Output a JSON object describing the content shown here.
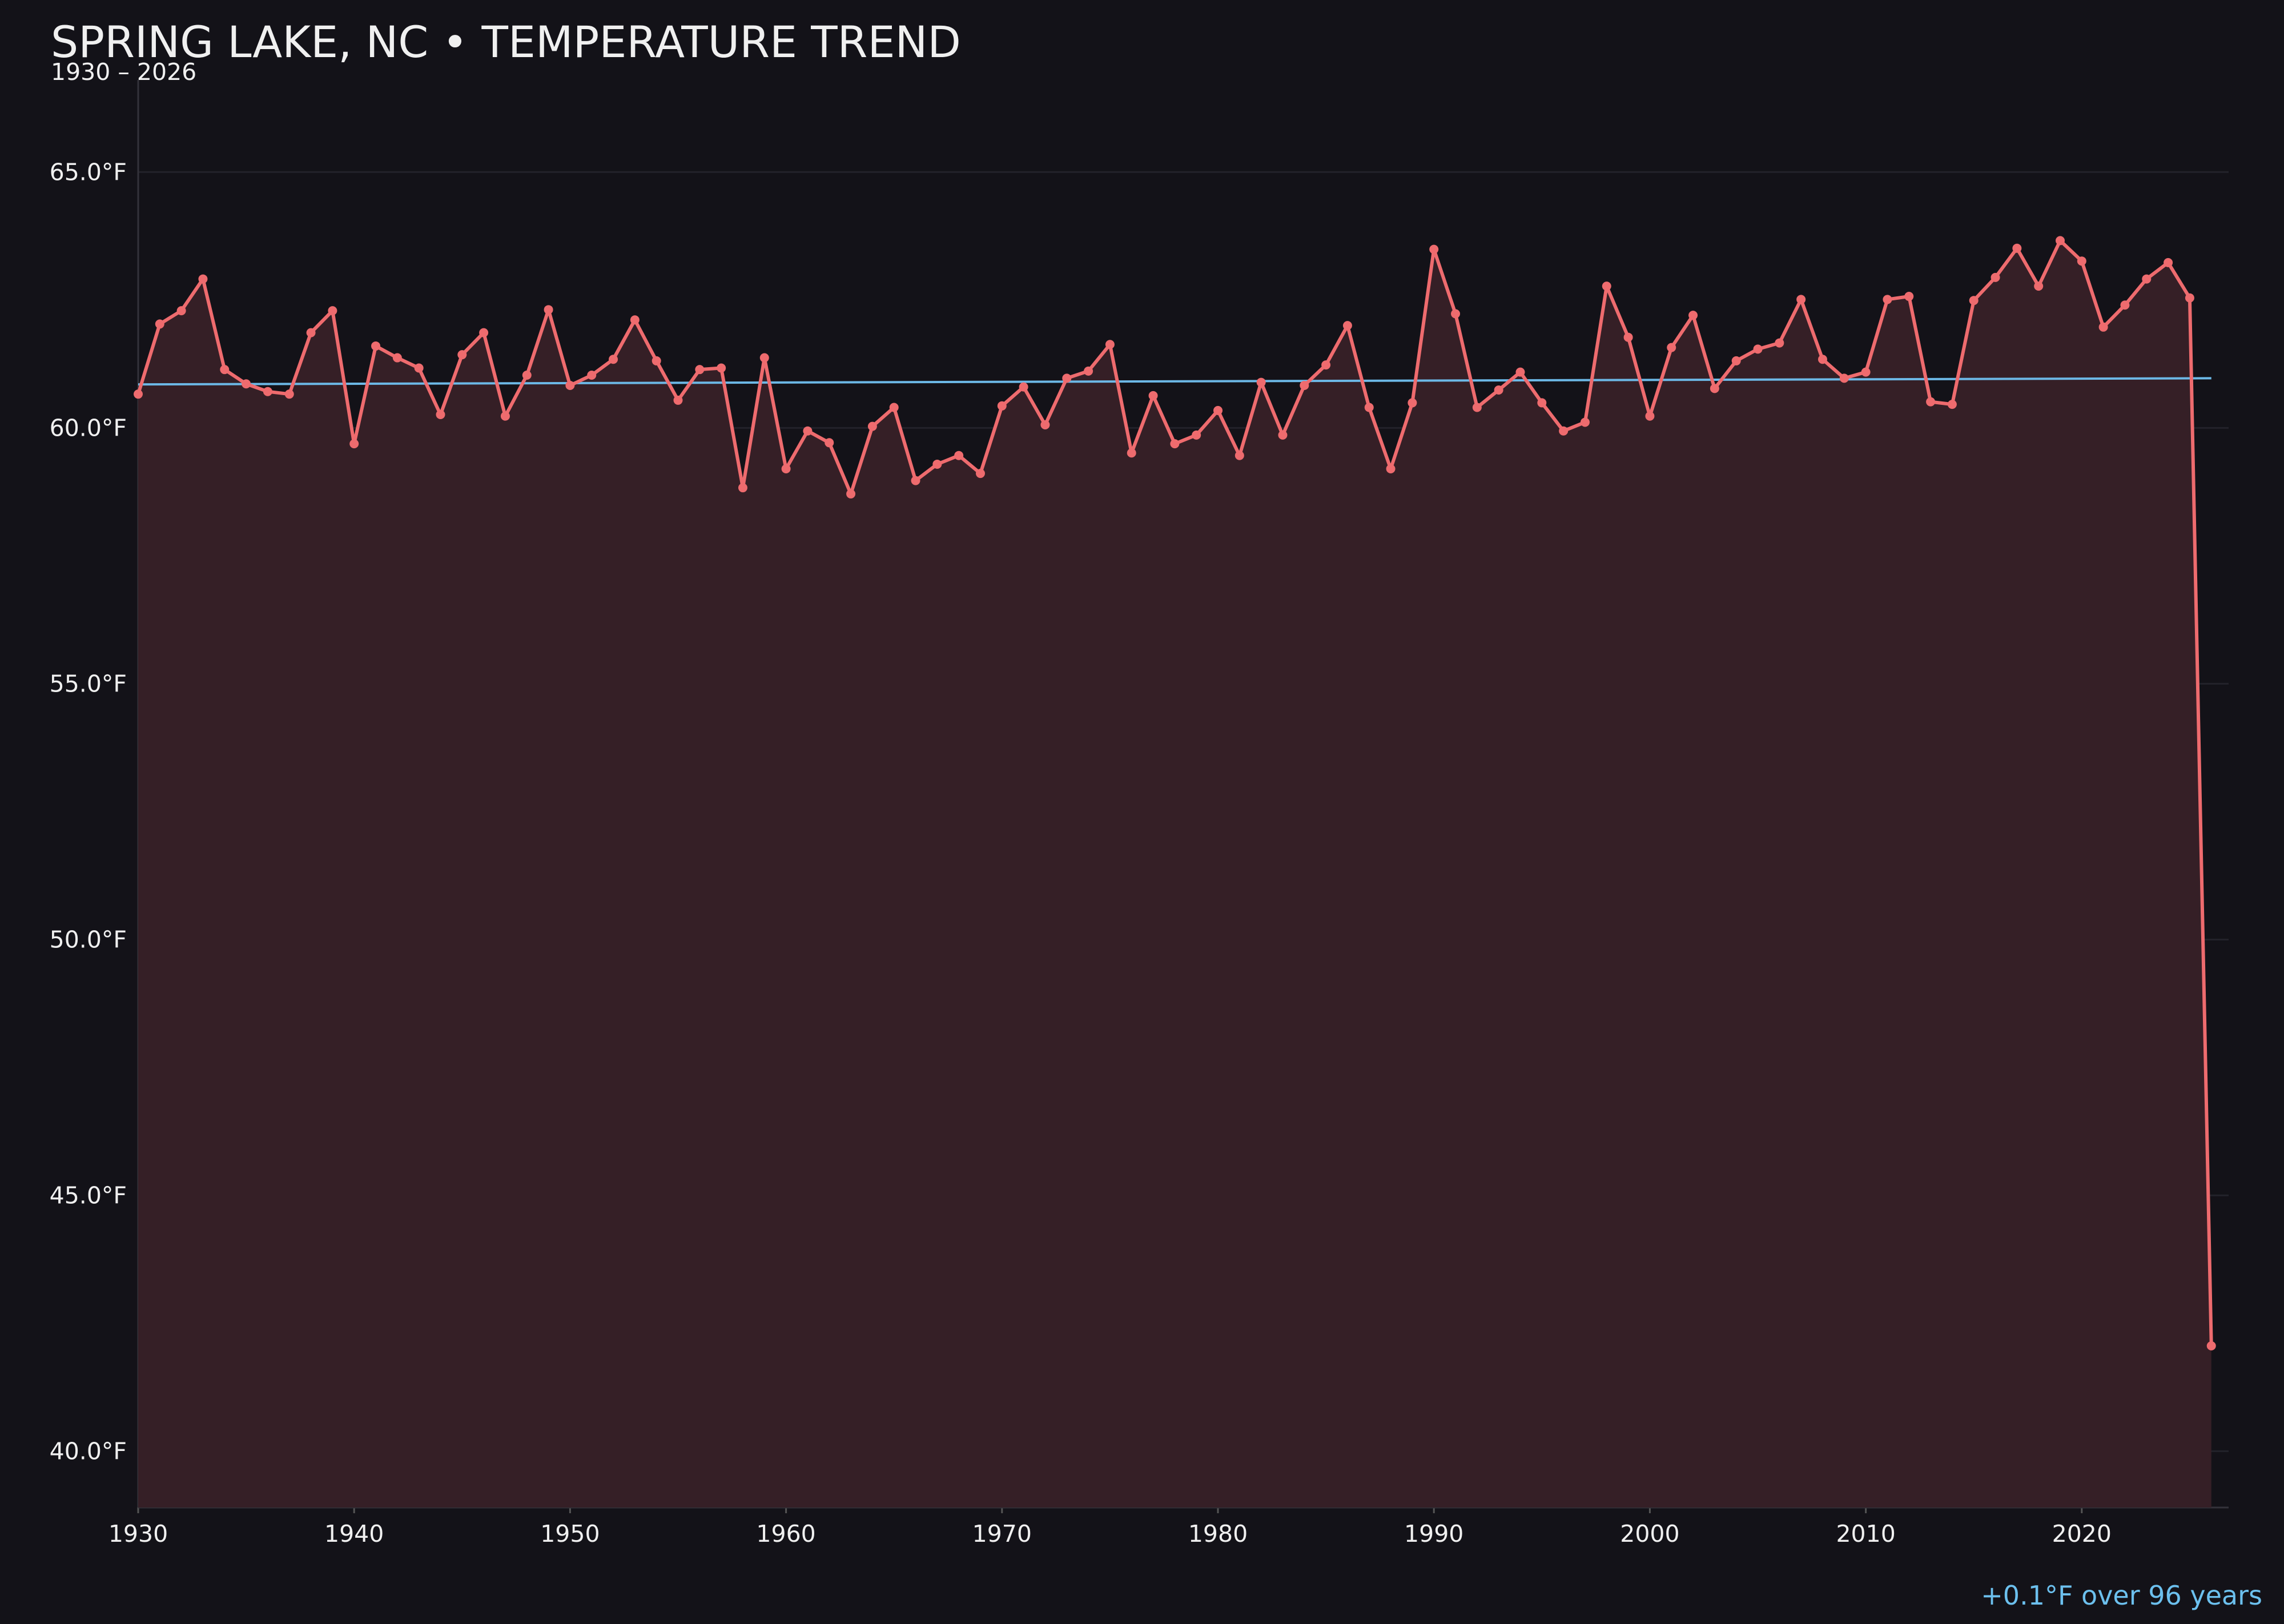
{
  "chart_data": {
    "type": "line",
    "title": "SPRING LAKE, NC • TEMPERATURE TREND",
    "subtitle": "1930 – 2026",
    "annotation": "+0.1°F over 96 years",
    "x": [
      1930,
      1931,
      1932,
      1933,
      1934,
      1935,
      1936,
      1937,
      1938,
      1939,
      1940,
      1941,
      1942,
      1943,
      1944,
      1945,
      1946,
      1947,
      1948,
      1949,
      1950,
      1951,
      1952,
      1953,
      1954,
      1955,
      1956,
      1957,
      1958,
      1959,
      1960,
      1961,
      1962,
      1963,
      1964,
      1965,
      1966,
      1967,
      1968,
      1969,
      1970,
      1971,
      1972,
      1973,
      1974,
      1975,
      1976,
      1977,
      1978,
      1979,
      1980,
      1981,
      1982,
      1983,
      1984,
      1985,
      1986,
      1987,
      1988,
      1989,
      1990,
      1991,
      1992,
      1993,
      1994,
      1995,
      1996,
      1997,
      1998,
      1999,
      2000,
      2001,
      2002,
      2003,
      2004,
      2005,
      2006,
      2007,
      2008,
      2009,
      2010,
      2011,
      2012,
      2013,
      2014,
      2015,
      2016,
      2017,
      2018,
      2019,
      2020,
      2021,
      2022,
      2023,
      2024,
      2025,
      2026
    ],
    "values": [
      60.66,
      62.03,
      62.29,
      62.91,
      61.14,
      60.86,
      60.71,
      60.66,
      61.86,
      62.29,
      59.69,
      61.6,
      61.37,
      61.17,
      60.26,
      61.43,
      61.86,
      60.23,
      61.03,
      62.31,
      60.83,
      61.03,
      61.34,
      62.11,
      61.31,
      60.54,
      61.14,
      61.17,
      58.83,
      61.37,
      59.2,
      59.94,
      59.71,
      58.71,
      60.03,
      60.4,
      58.97,
      59.29,
      59.46,
      59.11,
      60.43,
      60.8,
      60.06,
      60.97,
      61.11,
      61.63,
      59.51,
      60.63,
      59.69,
      59.86,
      60.34,
      59.46,
      60.89,
      59.86,
      60.83,
      61.23,
      62.0,
      60.4,
      59.2,
      60.49,
      63.49,
      62.23,
      60.4,
      60.74,
      61.09,
      60.49,
      59.94,
      60.11,
      62.77,
      61.77,
      60.23,
      61.57,
      62.2,
      60.77,
      61.31,
      61.54,
      61.66,
      62.51,
      61.34,
      60.97,
      61.09,
      62.51,
      62.57,
      60.51,
      60.46,
      62.49,
      62.94,
      63.51,
      62.77,
      63.66,
      63.26,
      61.97,
      62.4,
      62.91,
      63.23,
      62.54,
      42.06
    ],
    "color": "#ee6b6e",
    "fill_color": "#351f26",
    "trend": {
      "x": [
        1930,
        2026
      ],
      "values": [
        60.85,
        60.97
      ],
      "color": "#6cb8e6"
    },
    "xlim": [
      1930,
      2026.8
    ],
    "ylim": [
      38.9,
      66.8
    ],
    "xticks": [
      1930,
      1940,
      1950,
      1960,
      1970,
      1980,
      1990,
      2000,
      2010,
      2020
    ],
    "yticks": [
      {
        "value": 40,
        "label": "40.0°F"
      },
      {
        "value": 45,
        "label": "45.0°F"
      },
      {
        "value": 50,
        "label": "50.0°F"
      },
      {
        "value": 55,
        "label": "55.0°F"
      },
      {
        "value": 60,
        "label": "60.0°F"
      },
      {
        "value": 65,
        "label": "65.0°F"
      }
    ],
    "grid": true
  }
}
